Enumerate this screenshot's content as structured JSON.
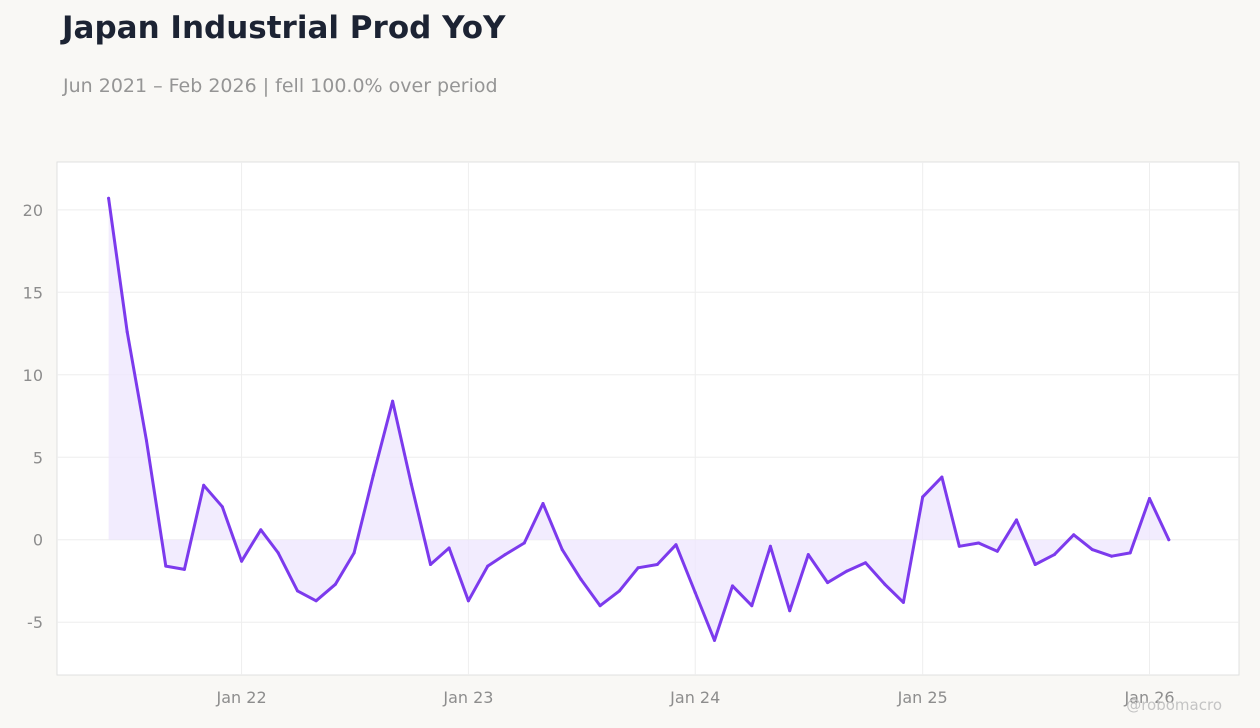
{
  "header": {
    "title": "Japan Industrial Prod YoY",
    "subtitle": "Jun 2021 – Feb 2026 | fell 100.0% over period"
  },
  "watermark": "@robomacro",
  "chart_data": {
    "type": "area",
    "title": "Japan Industrial Prod YoY",
    "subtitle": "Jun 2021 – Feb 2026 | fell 100.0% over period",
    "xlabel": "",
    "ylabel": "",
    "ylim": [
      -8.2,
      22.9
    ],
    "xlim": [
      "2021-03-10",
      "2026-05-25"
    ],
    "grid": true,
    "legend": "none",
    "colors": {
      "line": "#7c3aed",
      "fill": "#ede5fd",
      "grid": "#eeeeee",
      "frame": "#e0e0e0",
      "panel": "#ffffff"
    },
    "yticks": [
      -5,
      0,
      5,
      10,
      15,
      20
    ],
    "xticks": [
      {
        "date": "2022-01-01",
        "label": "Jan 22"
      },
      {
        "date": "2023-01-01",
        "label": "Jan 23"
      },
      {
        "date": "2024-01-01",
        "label": "Jan 24"
      },
      {
        "date": "2025-01-01",
        "label": "Jan 25"
      },
      {
        "date": "2026-01-01",
        "label": "Jan 26"
      }
    ],
    "series": [
      {
        "points": [
          [
            "2021-06-01",
            20.7
          ],
          [
            "2021-07-01",
            12.6
          ],
          [
            "2021-08-01",
            6.0
          ],
          [
            "2021-09-01",
            -1.6
          ],
          [
            "2021-10-01",
            -1.8
          ],
          [
            "2021-11-01",
            3.3
          ],
          [
            "2021-12-01",
            2.0
          ],
          [
            "2022-01-01",
            -1.3
          ],
          [
            "2022-02-01",
            0.6
          ],
          [
            "2022-03-01",
            -0.8
          ],
          [
            "2022-04-01",
            -3.1
          ],
          [
            "2022-05-01",
            -3.7
          ],
          [
            "2022-06-01",
            -2.7
          ],
          [
            "2022-07-01",
            -0.8
          ],
          [
            "2022-08-01",
            3.9
          ],
          [
            "2022-09-01",
            8.4
          ],
          [
            "2022-10-01",
            3.4
          ],
          [
            "2022-11-01",
            -1.5
          ],
          [
            "2022-12-01",
            -0.5
          ],
          [
            "2023-01-01",
            -3.7
          ],
          [
            "2023-02-01",
            -1.6
          ],
          [
            "2023-03-01",
            -0.9
          ],
          [
            "2023-04-01",
            -0.2
          ],
          [
            "2023-05-01",
            2.2
          ],
          [
            "2023-06-01",
            -0.6
          ],
          [
            "2023-07-01",
            -2.4
          ],
          [
            "2023-08-01",
            -4.0
          ],
          [
            "2023-09-01",
            -3.1
          ],
          [
            "2023-10-01",
            -1.7
          ],
          [
            "2023-11-01",
            -1.5
          ],
          [
            "2023-12-01",
            -0.3
          ],
          [
            "2024-01-01",
            -3.2
          ],
          [
            "2024-02-01",
            -6.1
          ],
          [
            "2024-03-01",
            -2.8
          ],
          [
            "2024-04-01",
            -4.0
          ],
          [
            "2024-05-01",
            -0.4
          ],
          [
            "2024-06-01",
            -4.3
          ],
          [
            "2024-07-01",
            -0.9
          ],
          [
            "2024-08-01",
            -2.6
          ],
          [
            "2024-09-01",
            -1.9
          ],
          [
            "2024-10-01",
            -1.4
          ],
          [
            "2024-11-01",
            -2.7
          ],
          [
            "2024-12-01",
            -3.8
          ],
          [
            "2025-01-01",
            2.6
          ],
          [
            "2025-02-01",
            3.8
          ],
          [
            "2025-03-01",
            -0.4
          ],
          [
            "2025-04-01",
            -0.2
          ],
          [
            "2025-05-01",
            -0.7
          ],
          [
            "2025-06-01",
            1.2
          ],
          [
            "2025-07-01",
            -1.5
          ],
          [
            "2025-08-01",
            -0.9
          ],
          [
            "2025-09-01",
            0.3
          ],
          [
            "2025-10-01",
            -0.6
          ],
          [
            "2025-11-01",
            -1.0
          ],
          [
            "2025-12-01",
            -0.8
          ],
          [
            "2026-01-01",
            2.5
          ],
          [
            "2026-02-01",
            0.0
          ]
        ]
      }
    ]
  }
}
